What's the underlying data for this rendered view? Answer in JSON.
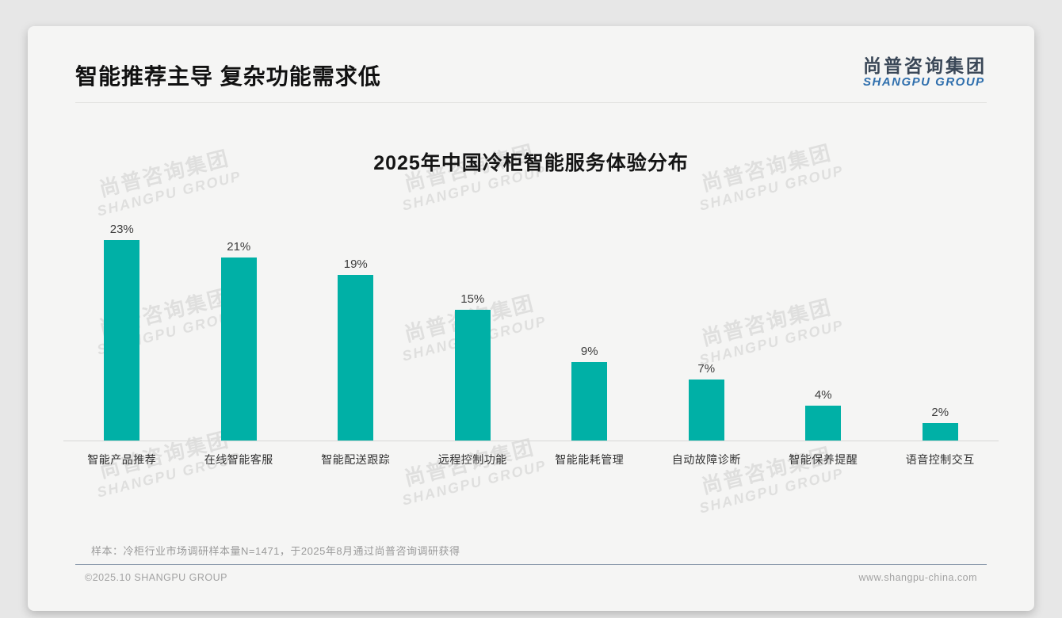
{
  "header": {
    "title": "智能推荐主导 复杂功能需求低"
  },
  "logo": {
    "cn": "尚普咨询集团",
    "en": "SHANGPU GROUP"
  },
  "watermark": {
    "cn": "尚普咨询集团",
    "en": "SHANGPU GROUP"
  },
  "note": "样本：冷柜行业市场调研样本量N=1471，于2025年8月通过尚普咨询调研获得",
  "footer": {
    "left": "©2025.10 SHANGPU GROUP",
    "right": "www.shangpu-china.com"
  },
  "colors": {
    "bar": "#00b0a6",
    "logoCn": "#3a4757",
    "logoEn": "#2f6fad",
    "divider": "#8e9cad"
  },
  "chart_data": {
    "type": "bar",
    "title": "2025年中国冷柜智能服务体验分布",
    "categories": [
      "智能产品推荐",
      "在线智能客服",
      "智能配送跟踪",
      "远程控制功能",
      "智能能耗管理",
      "自动故障诊断",
      "智能保养提醒",
      "语音控制交互"
    ],
    "values": [
      23,
      21,
      19,
      15,
      9,
      7,
      4,
      2
    ],
    "data_labels": [
      "23%",
      "21%",
      "19%",
      "15%",
      "9%",
      "7%",
      "4%",
      "2%"
    ],
    "unit": "%",
    "xlabel": "",
    "ylabel": "",
    "ylim": [
      0,
      25
    ],
    "grid": false,
    "legend": "none",
    "bar_color": "#00b0a6"
  }
}
